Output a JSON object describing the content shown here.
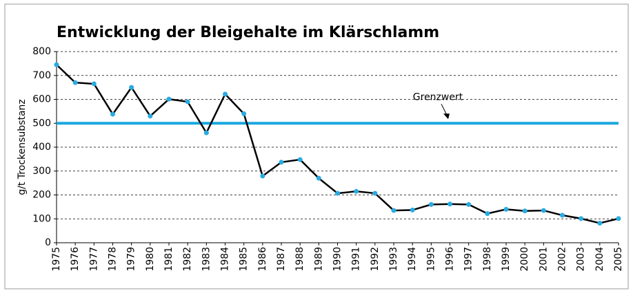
{
  "chart_data": {
    "type": "line",
    "title": "Entwicklung der Bleigehalte im Klärschlamm",
    "y_label": "g/t Trockensubstanz",
    "categories": [
      "1975",
      "1976",
      "1977",
      "1978",
      "1979",
      "1980",
      "1981",
      "1982",
      "1983",
      "1984",
      "1985",
      "1986",
      "1987",
      "1988",
      "1989",
      "1990",
      "1991",
      "1992",
      "1993",
      "1994",
      "1995",
      "1996",
      "1997",
      "1998",
      "1999",
      "2000",
      "2001",
      "2002",
      "2003",
      "2004",
      "2005"
    ],
    "values": [
      745,
      670,
      665,
      538,
      650,
      530,
      601,
      590,
      460,
      622,
      540,
      279,
      337,
      348,
      270,
      207,
      215,
      207,
      135,
      137,
      160,
      162,
      160,
      122,
      140,
      133,
      135,
      115,
      101,
      82,
      101
    ],
    "color": "#000000",
    "marker_color": "#29abe2",
    "reference_lines": [
      {
        "value": 500,
        "label": "Grenzwert",
        "color": "#1aa7e0"
      }
    ],
    "ylim": [
      0,
      800
    ],
    "yticks": [
      0,
      100,
      200,
      300,
      400,
      500,
      600,
      700,
      800
    ],
    "grid": true
  }
}
